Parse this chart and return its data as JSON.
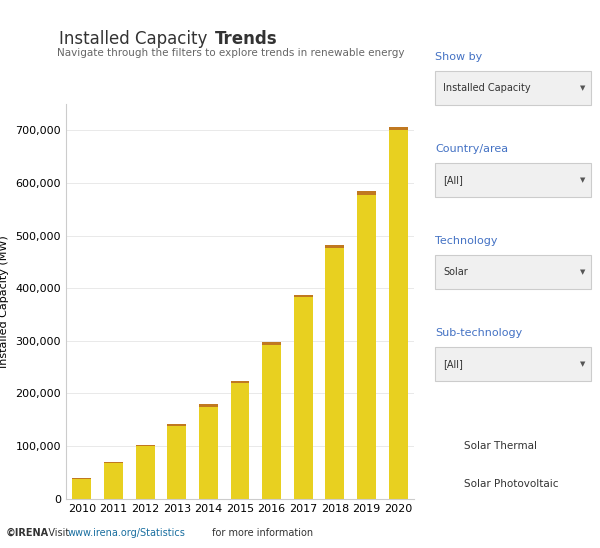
{
  "title_normal": "Installed Capacity ",
  "title_bold": "Trends",
  "subtitle": "Navigate through the filters to explore trends in renewable energy",
  "years": [
    2010,
    2011,
    2012,
    2013,
    2014,
    2015,
    2016,
    2017,
    2018,
    2019,
    2020
  ],
  "solar_pv": [
    38000,
    68000,
    100000,
    138000,
    175000,
    219000,
    292000,
    383000,
    476000,
    578000,
    700000
  ],
  "solar_thermal": [
    1200,
    1700,
    2800,
    3700,
    4700,
    5000,
    5000,
    5000,
    5600,
    6100,
    6500
  ],
  "color_pv": "#E8D020",
  "color_thermal": "#C07820",
  "ylabel": "Installed Capacity (MW)",
  "ylim": [
    0,
    750000
  ],
  "yticks": [
    0,
    100000,
    200000,
    300000,
    400000,
    500000,
    600000,
    700000
  ],
  "footer_irena": "©IRENA",
  "footer_visit": "   Visit ",
  "footer_link": "www.irena.org/Statistics",
  "footer_end": " for more information",
  "panel_title_color": "#4472C4",
  "box_color": "#F0F0F0",
  "box_border": "#CCCCCC",
  "sidebar_labels": [
    "Show by",
    "Country/area",
    "Technology",
    "Sub-technology"
  ],
  "sidebar_values": [
    "Installed Capacity",
    "[All]",
    "Solar",
    "[All]"
  ],
  "legend_solar_thermal": "Solar Thermal",
  "legend_solar_pv": "Solar Photovoltaic",
  "background_color": "#FFFFFF",
  "link_color": "#1a6fa0",
  "text_color": "#333333",
  "subtitle_color": "#666666"
}
